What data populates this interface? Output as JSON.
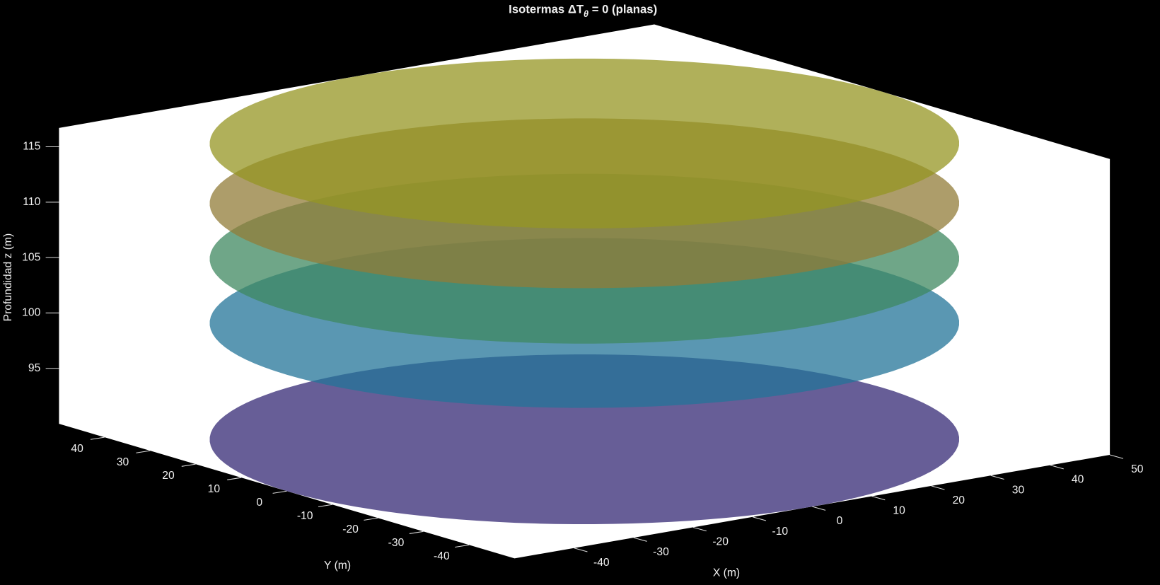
{
  "chart_data": {
    "type": "disks3d",
    "title": {
      "main": "Isotermas ΔT",
      "subscript": "θ",
      "rest": " = 0 (planas)"
    },
    "xlabel": "X (m)",
    "ylabel": "Y (m)",
    "zlabel": "Profundidad z (m)",
    "radius": 50,
    "alpha": 0.75,
    "surfaces": [
      {
        "z": 90,
        "color": "#342874"
      },
      {
        "z": 100.5,
        "color": "#237498"
      },
      {
        "z": 106.3,
        "color": "#3f8860"
      },
      {
        "z": 111.3,
        "color": "#927c38"
      },
      {
        "z": 116.7,
        "color": "#969623"
      }
    ],
    "xlim": [
      -50,
      50
    ],
    "ylim": [
      -50,
      50
    ],
    "zlim": [
      90,
      116.7
    ],
    "xticks": [
      -40,
      -30,
      -20,
      -10,
      0,
      10,
      20,
      30,
      40,
      50
    ],
    "yticks": [
      -40,
      -30,
      -20,
      -10,
      0,
      10,
      20,
      30,
      40
    ],
    "zticks": [
      95,
      100,
      105,
      110,
      115
    ]
  }
}
